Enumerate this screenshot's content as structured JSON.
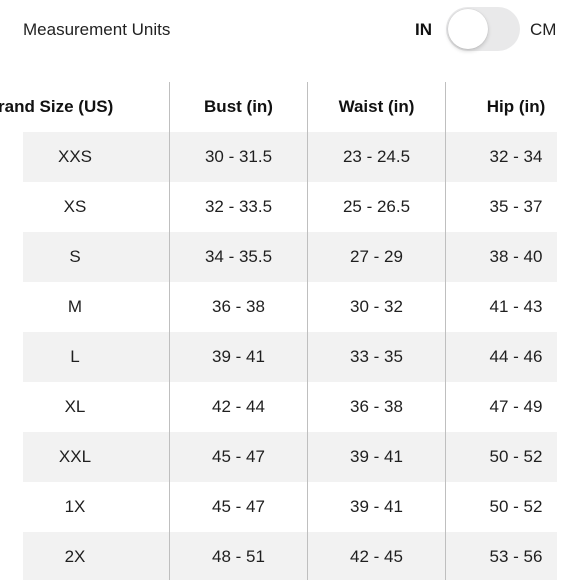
{
  "units": {
    "label": "Measurement Units",
    "option_in": "IN",
    "option_cm": "CM",
    "selected": "IN"
  },
  "table": {
    "headers": [
      "rand Size (US)",
      "Bust (in)",
      "Waist (in)",
      "Hip (in)"
    ],
    "rows": [
      [
        "XXS",
        "30 - 31.5",
        "23 - 24.5",
        "32 - 34"
      ],
      [
        "XS",
        "32 - 33.5",
        "25 - 26.5",
        "35 - 37"
      ],
      [
        "S",
        "34 - 35.5",
        "27 - 29",
        "38 - 40"
      ],
      [
        "M",
        "36 - 38",
        "30 - 32",
        "41 - 43"
      ],
      [
        "L",
        "39 - 41",
        "33 - 35",
        "44 - 46"
      ],
      [
        "XL",
        "42 - 44",
        "36 - 38",
        "47 - 49"
      ],
      [
        "XXL",
        "45 - 47",
        "39 - 41",
        "50 - 52"
      ],
      [
        "1X",
        "45 - 47",
        "39 - 41",
        "50 - 52"
      ],
      [
        "2X",
        "48 - 51",
        "42 - 45",
        "53 - 56"
      ]
    ]
  },
  "colors": {
    "row_shade": "#f2f2f2",
    "divider": "#bfbfbf",
    "toggle_track": "#e9e9ea"
  }
}
